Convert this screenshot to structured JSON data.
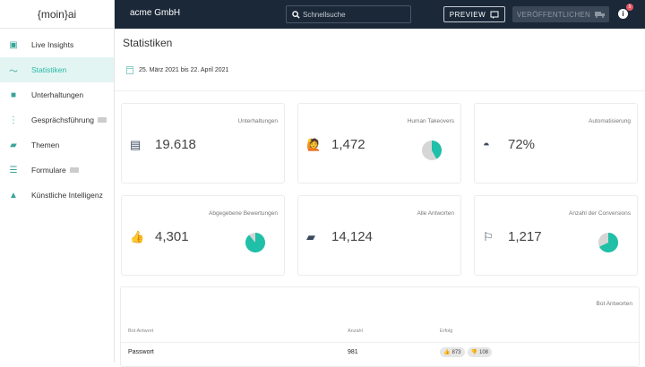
{
  "logo": "{moin}ai",
  "sidebar": {
    "items": [
      {
        "label": "Live Insights",
        "icon": "tv-play-icon"
      },
      {
        "label": "Statistiken",
        "icon": "trending-icon",
        "active": true
      },
      {
        "label": "Unterhaltungen",
        "icon": "chat-icon"
      },
      {
        "label": "Gesprächsführung",
        "icon": "flow-icon",
        "beta": true
      },
      {
        "label": "Themen",
        "icon": "forum-icon"
      },
      {
        "label": "Formulare",
        "icon": "form-icon",
        "beta": true
      },
      {
        "label": "Künstliche Intelligenz",
        "icon": "school-icon"
      }
    ]
  },
  "topbar": {
    "company": "acme GmbH",
    "search_placeholder": "Schnellsuche",
    "preview": "PREVIEW",
    "publish": "VERÖFFENTLICHEN",
    "info": "i",
    "notifications": "5"
  },
  "main": {
    "title": "Statistiken",
    "date_range": "25. März 2021 bis 22. April 2021",
    "cards": [
      {
        "title": "Unterhaltungen",
        "value": "19.618",
        "icon": "message-icon"
      },
      {
        "title": "Human Takeovers",
        "value": "1,472",
        "icon": "person-raise-hand-icon",
        "pie": 0.42
      },
      {
        "title": "Automatisierung",
        "value": "72%",
        "icon": "android-icon"
      },
      {
        "title": "Abgegebene Bewertungen",
        "value": "4,301",
        "icon": "thumbs-up-down-icon",
        "pie": 0.89
      },
      {
        "title": "Alle Antworten",
        "value": "14,124",
        "icon": "forum-icon"
      },
      {
        "title": "Anzahl der Conversions",
        "value": "1,217",
        "icon": "flag-icon",
        "pie": 0.68
      }
    ],
    "colors": {
      "accent": "#1fbfa8",
      "pie_rest": "#d6d6d6",
      "topbar": "#1b2838"
    },
    "table": {
      "title": "Bot Antworten",
      "headers": [
        "Bot Antwort",
        "Anzahl",
        "Erfolg"
      ],
      "rows": [
        {
          "answer": "Passwort",
          "count": "981",
          "up": "873",
          "down": "108"
        }
      ]
    }
  }
}
